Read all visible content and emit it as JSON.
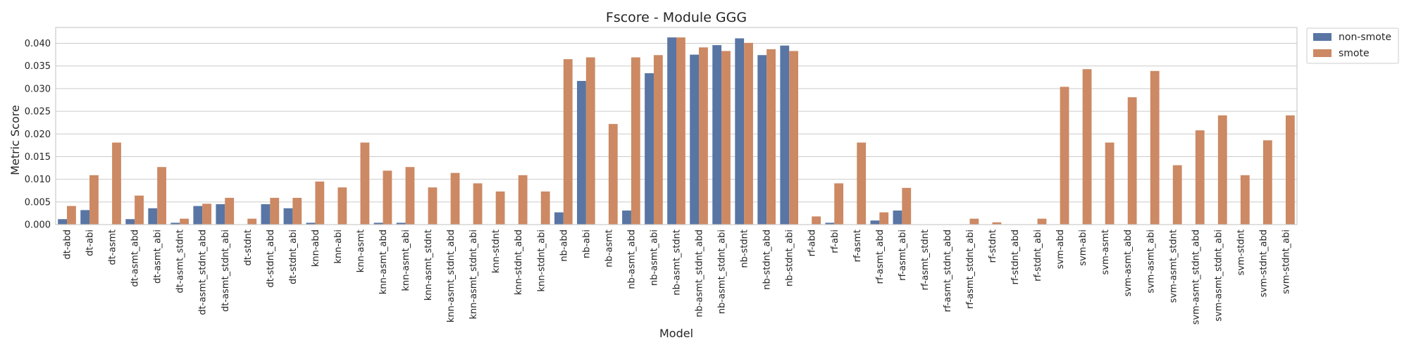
{
  "chart_data": {
    "type": "bar",
    "title": "Fscore - Module GGG",
    "xlabel": "Model",
    "ylabel": "Metric Score",
    "ylim": [
      0,
      0.0435
    ],
    "yticks": [
      "0.000",
      "0.005",
      "0.010",
      "0.015",
      "0.020",
      "0.025",
      "0.030",
      "0.035",
      "0.040"
    ],
    "grid": true,
    "legend_position": "outside-top-right",
    "categories": [
      "dt-abd",
      "dt-abi",
      "dt-asmt",
      "dt-asmt_abd",
      "dt-asmt_abi",
      "dt-asmt_stdnt",
      "dt-asmt_stdnt_abd",
      "dt-asmt_stdnt_abi",
      "dt-stdnt",
      "dt-stdnt_abd",
      "dt-stdnt_abi",
      "knn-abd",
      "knn-abi",
      "knn-asmt",
      "knn-asmt_abd",
      "knn-asmt_abi",
      "knn-asmt_stdnt",
      "knn-asmt_stdnt_abd",
      "knn-asmt_stdnt_abi",
      "knn-stdnt",
      "knn-stdnt_abd",
      "knn-stdnt_abi",
      "nb-abd",
      "nb-abi",
      "nb-asmt",
      "nb-asmt_abd",
      "nb-asmt_abi",
      "nb-asmt_stdnt",
      "nb-asmt_stdnt_abd",
      "nb-asmt_stdnt_abi",
      "nb-stdnt",
      "nb-stdnt_abd",
      "nb-stdnt_abi",
      "rf-abd",
      "rf-abi",
      "rf-asmt",
      "rf-asmt_abd",
      "rf-asmt_abi",
      "rf-asmt_stdnt",
      "rf-asmt_stdnt_abd",
      "rf-asmt_stdnt_abi",
      "rf-stdnt",
      "rf-stdnt_abd",
      "rf-stdnt_abi",
      "svm-abd",
      "svm-abi",
      "svm-asmt",
      "svm-asmt_abd",
      "svm-asmt_abi",
      "svm-asmt_stdnt",
      "svm-asmt_stdnt_abd",
      "svm-asmt_stdnt_abi",
      "svm-stdnt",
      "svm-stdnt_abd",
      "svm-stdnt_abi"
    ],
    "series": [
      {
        "name": "non-smote",
        "color": "#5875a4",
        "values": [
          0.0012,
          0.0032,
          0,
          0.0012,
          0.0036,
          0.0004,
          0.0041,
          0.0045,
          0,
          0.0045,
          0.0036,
          0.0004,
          0,
          0,
          0.0004,
          0.0004,
          0,
          0,
          0,
          0,
          0,
          0,
          0.0027,
          0.0317,
          0,
          0.0031,
          0.0334,
          0.0413,
          0.0375,
          0.0396,
          0.0411,
          0.0374,
          0.0395,
          0,
          0.0004,
          0,
          0.0009,
          0.0031,
          0,
          0,
          0,
          0,
          0,
          0,
          0,
          0,
          0,
          0,
          0,
          0,
          0,
          0,
          0,
          0,
          0
        ]
      },
      {
        "name": "smote",
        "color": "#cc8963",
        "values": [
          0.0041,
          0.0109,
          0.0181,
          0.0064,
          0.0127,
          0.0013,
          0.0046,
          0.0059,
          0.0013,
          0.0059,
          0.0059,
          0.0095,
          0.0082,
          0.0181,
          0.0119,
          0.0127,
          0.0082,
          0.0114,
          0.0091,
          0.0073,
          0.0109,
          0.0073,
          0.0365,
          0.0369,
          0.0222,
          0.0369,
          0.0374,
          0.0413,
          0.0391,
          0.0383,
          0.0401,
          0.0387,
          0.0383,
          0.0018,
          0.0091,
          0.0181,
          0.0027,
          0.0081,
          0,
          0,
          0.0013,
          0.0005,
          0,
          0.0013,
          0.0304,
          0.0343,
          0.0181,
          0.0281,
          0.0339,
          0.0131,
          0.0208,
          0.0241,
          0.0109,
          0.0186,
          0.0241
        ]
      }
    ]
  }
}
